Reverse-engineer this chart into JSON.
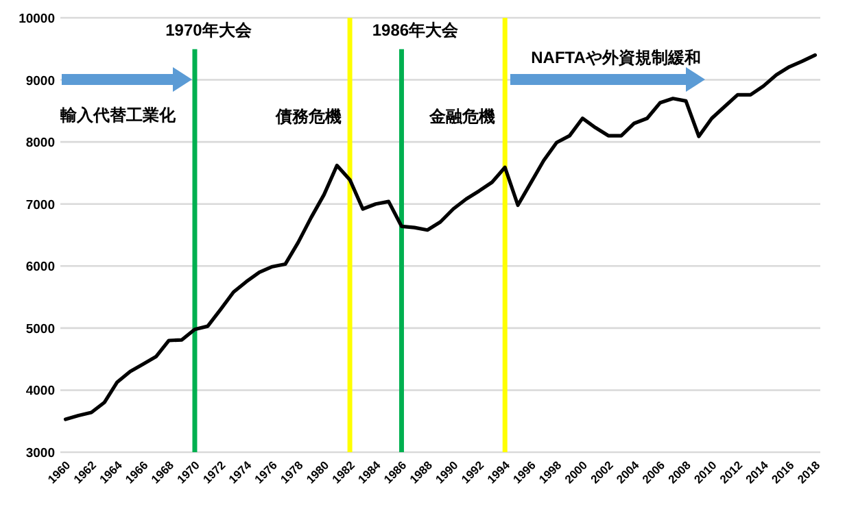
{
  "chart_data": {
    "type": "line",
    "x": [
      1960,
      1961,
      1962,
      1963,
      1964,
      1965,
      1966,
      1967,
      1968,
      1969,
      1970,
      1971,
      1972,
      1973,
      1974,
      1975,
      1976,
      1977,
      1978,
      1979,
      1980,
      1981,
      1982,
      1983,
      1984,
      1985,
      1986,
      1987,
      1988,
      1989,
      1990,
      1991,
      1992,
      1993,
      1994,
      1995,
      1996,
      1997,
      1998,
      1999,
      2000,
      2001,
      2002,
      2003,
      2004,
      2005,
      2006,
      2007,
      2008,
      2009,
      2010,
      2011,
      2012,
      2013,
      2014,
      2015,
      2016,
      2017,
      2018
    ],
    "series": [
      {
        "color": "#000000",
        "values": [
          3530,
          3590,
          3640,
          3800,
          4130,
          4300,
          4420,
          4540,
          4800,
          4810,
          4980,
          5030,
          5300,
          5580,
          5750,
          5900,
          5990,
          6030,
          6380,
          6780,
          7150,
          7620,
          7390,
          6920,
          7000,
          7040,
          6640,
          6620,
          6580,
          6710,
          6920,
          7080,
          7210,
          7350,
          7590,
          6980,
          7340,
          7700,
          7990,
          8100,
          8380,
          8230,
          8100,
          8100,
          8300,
          8380,
          8630,
          8700,
          8660,
          8090,
          8380,
          8570,
          8760,
          8760,
          8900,
          9080,
          9210,
          9300,
          9400
        ]
      }
    ],
    "xlim": [
      1959.6,
      2018.4
    ],
    "ylim": [
      3000,
      10000
    ],
    "xticks": [
      1960,
      1962,
      1964,
      1966,
      1968,
      1970,
      1972,
      1974,
      1976,
      1978,
      1980,
      1982,
      1984,
      1986,
      1988,
      1990,
      1992,
      1994,
      1996,
      1998,
      2000,
      2002,
      2004,
      2006,
      2008,
      2010,
      2012,
      2014,
      2016,
      2018
    ],
    "yticks": [
      3000,
      4000,
      5000,
      6000,
      7000,
      8000,
      9000,
      10000
    ],
    "grid": "y",
    "line_style": "solid",
    "ref_lines": [
      {
        "axis": "x",
        "value": 1970,
        "label": "1970年大会",
        "color": "#00b050"
      },
      {
        "axis": "x",
        "value": 1982,
        "color": "#ffff00"
      },
      {
        "axis": "x",
        "value": 1986,
        "label": "1986年大会",
        "color": "#00b050"
      },
      {
        "axis": "x",
        "value": 1994,
        "color": "#ffff00"
      }
    ],
    "annotations": [
      "輸入代替工業化",
      "債務危機",
      "金融危機",
      "NAFTAや外資規制緩和"
    ]
  }
}
